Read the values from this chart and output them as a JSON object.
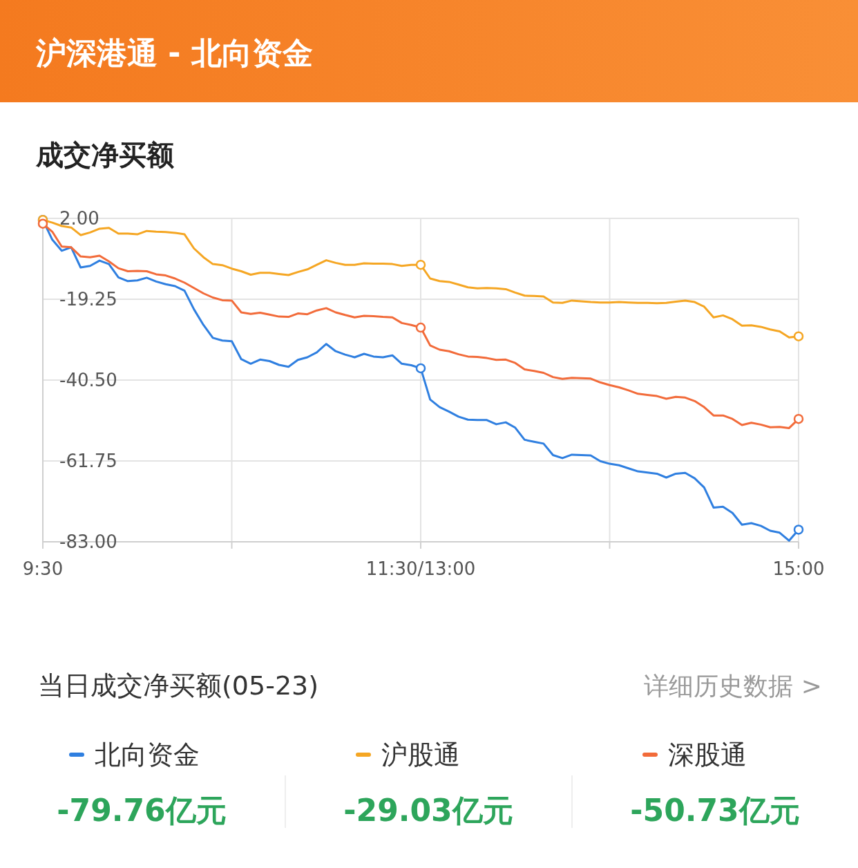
{
  "chart_data": {
    "type": "line",
    "title": "沪深港通 - 北向资金",
    "subtitle": "成交净买额",
    "categories": [
      "9:30",
      null,
      null,
      null,
      null,
      null,
      null,
      null,
      null,
      null,
      null,
      null,
      null,
      null,
      null,
      null,
      null,
      null,
      null,
      null,
      null,
      null,
      null,
      null,
      null,
      null,
      null,
      null,
      null,
      null,
      null,
      null,
      null,
      null,
      null,
      null,
      null,
      null,
      null,
      null,
      "11:30/13:00",
      null,
      null,
      null,
      null,
      null,
      null,
      null,
      null,
      null,
      null,
      null,
      null,
      null,
      null,
      null,
      null,
      null,
      null,
      null,
      null,
      null,
      null,
      null,
      null,
      null,
      null,
      null,
      null,
      null,
      null,
      null,
      null,
      null,
      null,
      null,
      null,
      null,
      null,
      null,
      "15:00"
    ],
    "ylim": [
      -83,
      2
    ],
    "yticks": [
      {
        "value": 2,
        "label": "2.00"
      },
      {
        "value": -19.25,
        "label": "-19.25"
      },
      {
        "value": -40.5,
        "label": "-40.50"
      },
      {
        "value": -61.75,
        "label": "-61.75"
      },
      {
        "value": -83,
        "label": "-83.00"
      }
    ],
    "grid": true,
    "legend": "bottom",
    "line_style": "solid",
    "series": [
      {
        "name": "北向资金",
        "color": "#2f7fe0",
        "values": [
          1.6,
          -3.6,
          -6.5,
          -5.6,
          -10.9,
          -10.5,
          -9.1,
          -10.0,
          -13.5,
          -14.5,
          -14.3,
          -13.6,
          -14.6,
          -15.3,
          -15.8,
          -17.0,
          -21.9,
          -26.0,
          -29.4,
          -30.1,
          -30.3,
          -35.0,
          -36.2,
          -35.1,
          -35.5,
          -36.5,
          -37.0,
          -35.2,
          -34.5,
          -33.2,
          -31.0,
          -32.9,
          -33.8,
          -34.5,
          -33.6,
          -34.3,
          -34.5,
          -34.0,
          -36.2,
          -36.6,
          -37.4,
          -45.6,
          -47.6,
          -48.8,
          -50.1,
          -50.9,
          -51.0,
          -51.0,
          -52.1,
          -51.6,
          -53.0,
          -56.2,
          -56.7,
          -57.2,
          -60.2,
          -61.0,
          -60.1,
          -60.2,
          -60.3,
          -61.8,
          -62.5,
          -62.9,
          -63.7,
          -64.5,
          -64.8,
          -65.1,
          -66.1,
          -65.1,
          -64.9,
          -66.3,
          -68.7,
          -74.0,
          -73.8,
          -75.4,
          -78.5,
          -78.1,
          -78.8,
          -80.1,
          -80.6,
          -82.7,
          -79.8
        ]
      },
      {
        "name": "沪股通",
        "color": "#f5a623",
        "values": [
          1.6,
          0.9,
          0.0,
          -0.4,
          -2.4,
          -1.7,
          -0.7,
          -0.5,
          -2.0,
          -2.0,
          -2.2,
          -1.3,
          -1.5,
          -1.6,
          -1.8,
          -2.2,
          -5.9,
          -8.2,
          -10.0,
          -10.3,
          -11.2,
          -11.9,
          -12.8,
          -12.3,
          -12.3,
          -12.6,
          -12.9,
          -12.1,
          -11.4,
          -10.2,
          -9.0,
          -9.7,
          -10.2,
          -10.2,
          -9.8,
          -9.9,
          -9.9,
          -10.0,
          -10.5,
          -10.2,
          -10.2,
          -13.8,
          -14.5,
          -14.7,
          -15.4,
          -16.1,
          -16.4,
          -16.3,
          -16.4,
          -16.6,
          -17.5,
          -18.3,
          -18.4,
          -18.5,
          -20.1,
          -20.2,
          -19.6,
          -19.8,
          -20.0,
          -20.1,
          -20.1,
          -20.0,
          -20.1,
          -20.2,
          -20.2,
          -20.3,
          -20.2,
          -19.9,
          -19.6,
          -20.0,
          -21.2,
          -24.0,
          -23.5,
          -24.5,
          -26.2,
          -26.1,
          -26.5,
          -27.2,
          -27.7,
          -29.3,
          -29.0
        ]
      },
      {
        "name": "深股通",
        "color": "#f26b3a",
        "values": [
          0.6,
          -1.5,
          -5.4,
          -5.6,
          -8.0,
          -8.2,
          -7.8,
          -9.3,
          -11.1,
          -11.9,
          -11.8,
          -11.9,
          -12.7,
          -13.0,
          -13.8,
          -14.9,
          -16.3,
          -17.7,
          -18.8,
          -19.5,
          -19.6,
          -22.7,
          -23.1,
          -22.8,
          -23.3,
          -23.8,
          -23.9,
          -23.0,
          -23.2,
          -22.2,
          -21.6,
          -22.7,
          -23.4,
          -24.0,
          -23.6,
          -23.7,
          -23.9,
          -24.0,
          -25.5,
          -26.0,
          -26.7,
          -31.4,
          -32.5,
          -32.9,
          -33.7,
          -34.3,
          -34.4,
          -34.7,
          -35.2,
          -35.1,
          -36.0,
          -37.7,
          -38.1,
          -38.6,
          -39.7,
          -40.2,
          -39.9,
          -40.0,
          -40.1,
          -41.1,
          -41.8,
          -42.4,
          -43.2,
          -44.1,
          -44.4,
          -44.7,
          -45.4,
          -44.9,
          -45.1,
          -46.0,
          -47.6,
          -49.8,
          -49.8,
          -50.7,
          -52.3,
          -51.7,
          -52.2,
          -52.9,
          -52.8,
          -53.1,
          -50.7
        ]
      }
    ],
    "annotations": [
      "当日成交净买额(05-23)",
      "详细历史数据 >",
      "-79.76亿元",
      "-29.03亿元",
      "-50.73亿元"
    ]
  }
}
